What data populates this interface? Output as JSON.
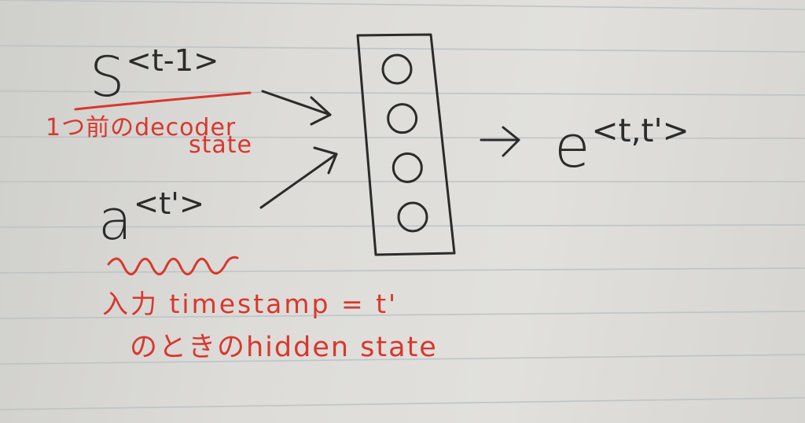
{
  "diagram": {
    "s_label": {
      "base": "S",
      "superscript": "<t-1>"
    },
    "a_label": {
      "base": "a",
      "superscript": "<t'>"
    },
    "e_label": {
      "base": "e",
      "superscript": "<t,t'>"
    },
    "notes": {
      "decoder_line1": "1つ前のdecoder",
      "decoder_line2": "state",
      "input_line1": "入力 timestamp = t'",
      "input_line2": "のときのhidden state"
    },
    "network_node_count": 4
  },
  "colors": {
    "ink": "#2b2b2b",
    "red_ink": "#d8372e",
    "paper": "#dddcd8",
    "ruled_line": "#b9c0c4"
  }
}
